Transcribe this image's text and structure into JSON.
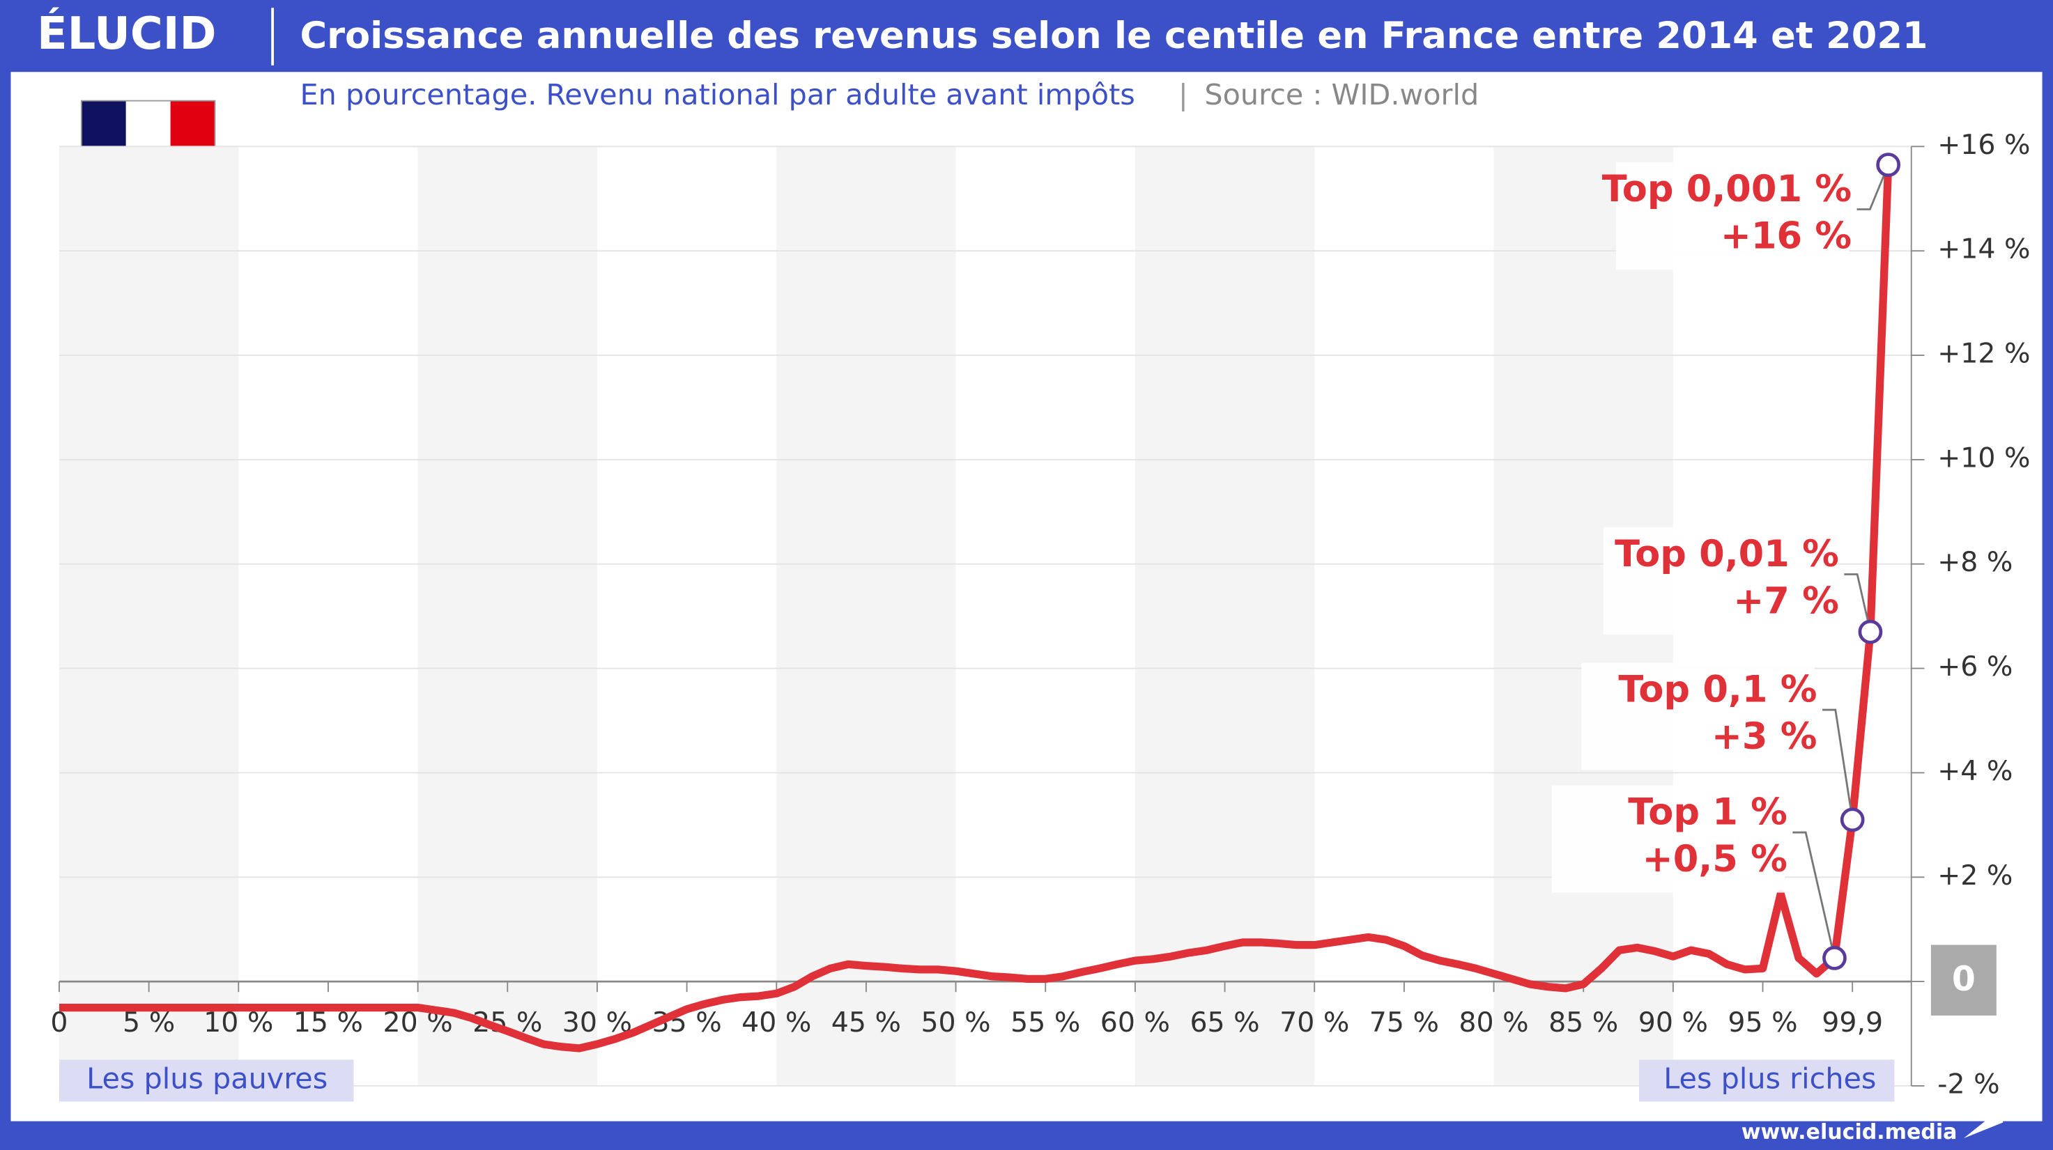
{
  "brand": "ÉLUCID",
  "footer": "www.elucid.media",
  "chart_data": {
    "type": "line",
    "title": "Croissance annuelle des revenus selon le centile en France entre 2014 et 2021",
    "subtitle": "En pourcentage. Revenu national par adulte avant impôts",
    "separator": "|",
    "source": "Source : WID.world",
    "left_note": "Les plus pauvres",
    "right_note": "Les plus riches",
    "categories": [
      "0",
      null,
      null,
      null,
      null,
      "5 %",
      null,
      null,
      null,
      null,
      "10 %",
      null,
      null,
      null,
      null,
      "15 %",
      null,
      null,
      null,
      null,
      "20 %",
      null,
      null,
      null,
      null,
      "25 %",
      null,
      null,
      null,
      null,
      "30 %",
      null,
      null,
      null,
      null,
      "35 %",
      null,
      null,
      null,
      null,
      "40 %",
      null,
      null,
      null,
      null,
      "45 %",
      null,
      null,
      null,
      null,
      "50 %",
      null,
      null,
      null,
      null,
      "55 %",
      null,
      null,
      null,
      null,
      "60 %",
      null,
      null,
      null,
      null,
      "65 %",
      null,
      null,
      null,
      null,
      "70 %",
      null,
      null,
      null,
      null,
      "75 %",
      null,
      null,
      null,
      null,
      "80 %",
      null,
      null,
      null,
      null,
      "85 %",
      null,
      null,
      null,
      null,
      "90 %",
      null,
      null,
      null,
      null,
      "95 %",
      null,
      null,
      null,
      null,
      "99,9",
      null,
      null
    ],
    "series": [
      {
        "color": "#e03038",
        "values": [
          -0.5,
          -0.5,
          -0.5,
          -0.5,
          -0.5,
          -0.5,
          -0.5,
          -0.5,
          -0.5,
          -0.5,
          -0.5,
          -0.5,
          -0.5,
          -0.5,
          -0.5,
          -0.5,
          -0.5,
          -0.5,
          -0.5,
          -0.5,
          -0.5,
          -0.55,
          -0.6,
          -0.7,
          -0.83,
          -0.95,
          -1.08,
          -1.2,
          -1.25,
          -1.28,
          -1.2,
          -1.1,
          -0.98,
          -0.83,
          -0.68,
          -0.53,
          -0.43,
          -0.35,
          -0.3,
          -0.28,
          -0.23,
          -0.1,
          0.1,
          0.25,
          0.33,
          0.3,
          0.28,
          0.25,
          0.23,
          0.23,
          0.2,
          0.15,
          0.1,
          0.08,
          0.05,
          0.05,
          0.1,
          0.18,
          0.25,
          0.33,
          0.4,
          0.43,
          0.48,
          0.55,
          0.6,
          0.68,
          0.75,
          0.75,
          0.73,
          0.7,
          0.7,
          0.75,
          0.8,
          0.85,
          0.8,
          0.68,
          0.5,
          0.4,
          0.33,
          0.25,
          0.15,
          0.05,
          -0.05,
          -0.1,
          -0.13,
          -0.05,
          0.25,
          0.6,
          0.65,
          0.58,
          0.48,
          0.6,
          0.53,
          0.33,
          0.23,
          0.25,
          1.68,
          0.45,
          0.15,
          0.45,
          3.1,
          6.7,
          15.65
        ],
        "point_names": [
          null,
          null,
          null,
          null,
          null,
          null,
          null,
          null,
          null,
          null,
          null,
          null,
          null,
          null,
          null,
          null,
          null,
          null,
          null,
          null,
          null,
          null,
          null,
          null,
          null,
          null,
          null,
          null,
          null,
          null,
          null,
          null,
          null,
          null,
          null,
          null,
          null,
          null,
          null,
          null,
          null,
          null,
          null,
          null,
          null,
          null,
          null,
          null,
          null,
          null,
          null,
          null,
          null,
          null,
          null,
          null,
          null,
          null,
          null,
          null,
          null,
          null,
          null,
          null,
          null,
          null,
          null,
          null,
          null,
          null,
          null,
          null,
          null,
          null,
          null,
          null,
          null,
          null,
          null,
          null,
          null,
          null,
          null,
          null,
          null,
          null,
          null,
          null,
          null,
          null,
          null,
          null,
          null,
          null,
          null,
          null,
          null,
          null,
          null,
          "Top 1 %",
          "Top 0,1 %",
          "Top 0,01 %",
          "Top 0,001 %"
        ],
        "value_labels": [
          null,
          null,
          null,
          null,
          null,
          null,
          null,
          null,
          null,
          null,
          null,
          null,
          null,
          null,
          null,
          null,
          null,
          null,
          null,
          null,
          null,
          null,
          null,
          null,
          null,
          null,
          null,
          null,
          null,
          null,
          null,
          null,
          null,
          null,
          null,
          null,
          null,
          null,
          null,
          null,
          null,
          null,
          null,
          null,
          null,
          null,
          null,
          null,
          null,
          null,
          null,
          null,
          null,
          null,
          null,
          null,
          null,
          null,
          null,
          null,
          null,
          null,
          null,
          null,
          null,
          null,
          null,
          null,
          null,
          null,
          null,
          null,
          null,
          null,
          null,
          null,
          null,
          null,
          null,
          null,
          null,
          null,
          null,
          null,
          null,
          null,
          null,
          null,
          null,
          null,
          null,
          null,
          null,
          null,
          null,
          null,
          null,
          null,
          null,
          "+0,5 %",
          "+3 %",
          "+7 %",
          "+16 %"
        ]
      }
    ],
    "ylim": [
      -2,
      16
    ],
    "yticks": [
      {
        "value": -2,
        "label": "-2 %"
      },
      0,
      {
        "value": 2,
        "label": "+2 %"
      },
      {
        "value": 4,
        "label": "+4 %"
      },
      {
        "value": 6,
        "label": "+6 %"
      },
      {
        "value": 8,
        "label": "+8 %"
      },
      {
        "value": 10,
        "label": "+10 %"
      },
      {
        "value": 12,
        "label": "+12 %"
      },
      {
        "value": 14,
        "label": "+14 %"
      },
      {
        "value": 16,
        "label": "+16 %"
      }
    ],
    "grid": true
  }
}
